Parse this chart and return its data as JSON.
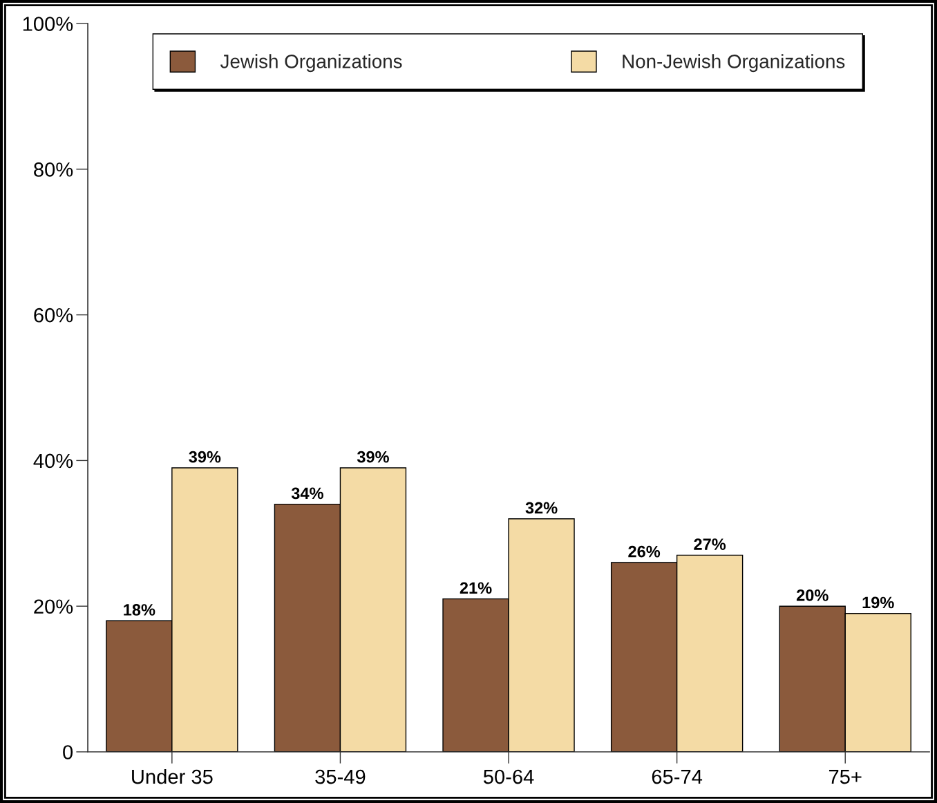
{
  "chart_data": {
    "type": "bar",
    "categories": [
      "Under 35",
      "35-49",
      "50-64",
      "65-74",
      "75+"
    ],
    "series": [
      {
        "name": "Jewish Organizations",
        "color": "#8b5a3c",
        "values": [
          18,
          34,
          21,
          26,
          20
        ],
        "value_labels": [
          "18%",
          "34%",
          "21%",
          "26%",
          "20%"
        ]
      },
      {
        "name": "Non-Jewish Organizations",
        "color": "#f4dba5",
        "values": [
          39,
          39,
          32,
          27,
          19
        ],
        "value_labels": [
          "39%",
          "39%",
          "32%",
          "27%",
          "19%"
        ]
      }
    ],
    "ylim": [
      0,
      100
    ],
    "yticks": [
      0,
      {
        "value": 20,
        "label": "20%"
      },
      {
        "value": 40,
        "label": "40%"
      },
      {
        "value": 60,
        "label": "60%"
      },
      {
        "value": 80,
        "label": "80%"
      },
      {
        "value": 100,
        "label": "100%"
      }
    ],
    "legend": "top"
  }
}
